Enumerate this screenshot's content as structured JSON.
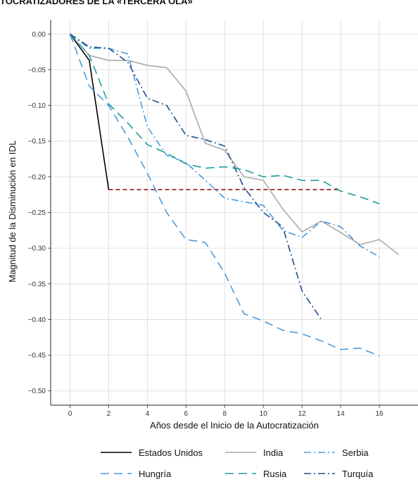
{
  "chart_data": {
    "type": "line",
    "title": "TOCRATIZADORES DE LA «TERCERA OLA»",
    "xlabel": "Años desde el Inicio de la Autocratización",
    "ylabel": "Magnitud de la Disminución en IDL",
    "xlim": [
      -1,
      18
    ],
    "ylim": [
      -0.52,
      0.02
    ],
    "xticks": [
      0,
      2,
      4,
      6,
      8,
      10,
      12,
      14,
      16
    ],
    "yticks": [
      0.0,
      -0.05,
      -0.1,
      -0.15,
      -0.2,
      -0.25,
      -0.3,
      -0.35,
      -0.4,
      -0.45,
      -0.5
    ],
    "ytick_labels": [
      "0.00",
      "−0.05",
      "−0.10",
      "−0.15",
      "−0.20",
      "−0.25",
      "−0.30",
      "−0.35",
      "−0.40",
      "−0.45",
      "−0.50"
    ],
    "grid": true,
    "legend_position": "bottom",
    "series": [
      {
        "name": "Estados Unidos",
        "color": "#000000",
        "dash": "solid",
        "x": [
          0,
          1,
          2
        ],
        "y": [
          0.0,
          -0.037,
          -0.218
        ]
      },
      {
        "name": "India",
        "color": "#aaaaaa",
        "dash": "solid",
        "x": [
          0,
          1,
          2,
          3,
          4,
          5,
          6,
          7,
          8,
          9,
          10,
          11,
          12,
          13,
          14,
          15,
          16,
          17
        ],
        "y": [
          0.0,
          -0.03,
          -0.037,
          -0.037,
          -0.044,
          -0.047,
          -0.08,
          -0.153,
          -0.163,
          -0.2,
          -0.205,
          -0.245,
          -0.277,
          -0.262,
          -0.278,
          -0.295,
          -0.288,
          -0.309
        ]
      },
      {
        "name": "Serbia",
        "color": "#4a9be0",
        "dash": "dashdot",
        "x": [
          0,
          1,
          2,
          3,
          4,
          5,
          6,
          7,
          8,
          9,
          10,
          11,
          12,
          13,
          14,
          15,
          16
        ],
        "y": [
          0.0,
          -0.02,
          -0.02,
          -0.028,
          -0.13,
          -0.17,
          -0.18,
          -0.205,
          -0.23,
          -0.235,
          -0.24,
          -0.275,
          -0.285,
          -0.262,
          -0.27,
          -0.297,
          -0.312
        ]
      },
      {
        "name": "Hungría",
        "color": "#4a9be0",
        "dash": "longdash",
        "x": [
          0,
          1,
          2,
          3,
          4,
          5,
          6,
          7,
          8,
          9,
          10,
          11,
          12,
          13,
          14,
          15,
          16
        ],
        "y": [
          0.0,
          -0.073,
          -0.1,
          -0.145,
          -0.195,
          -0.25,
          -0.288,
          -0.292,
          -0.335,
          -0.392,
          -0.402,
          -0.415,
          -0.42,
          -0.43,
          -0.442,
          -0.44,
          -0.451
        ]
      },
      {
        "name": "Rusia",
        "color": "#1a9e9a",
        "dash": "longdash",
        "x": [
          0,
          1,
          2,
          3,
          4,
          5,
          6,
          7,
          8,
          9,
          10,
          11,
          12,
          13,
          14,
          15,
          16
        ],
        "y": [
          0.0,
          -0.03,
          -0.098,
          -0.125,
          -0.155,
          -0.167,
          -0.182,
          -0.188,
          -0.186,
          -0.19,
          -0.2,
          -0.198,
          -0.205,
          -0.205,
          -0.22,
          -0.228,
          -0.238
        ]
      },
      {
        "name": "Turquía",
        "color": "#1f4e8c",
        "dash": "dashdot",
        "x": [
          0,
          1,
          2,
          3,
          4,
          5,
          6,
          7,
          8,
          9,
          10,
          11,
          12,
          13
        ],
        "y": [
          0.0,
          -0.018,
          -0.02,
          -0.04,
          -0.09,
          -0.1,
          -0.142,
          -0.148,
          -0.157,
          -0.215,
          -0.25,
          -0.27,
          -0.36,
          -0.4
        ]
      }
    ],
    "reference_line": {
      "color": "#8b1a1a",
      "dash": "dashed",
      "x": [
        2,
        14
      ],
      "y": [
        -0.218,
        -0.218
      ]
    },
    "legend_rows": [
      [
        "Estados Unidos",
        "India",
        "Serbia"
      ],
      [
        "Hungría",
        "Rusia",
        "Turquía"
      ]
    ]
  }
}
